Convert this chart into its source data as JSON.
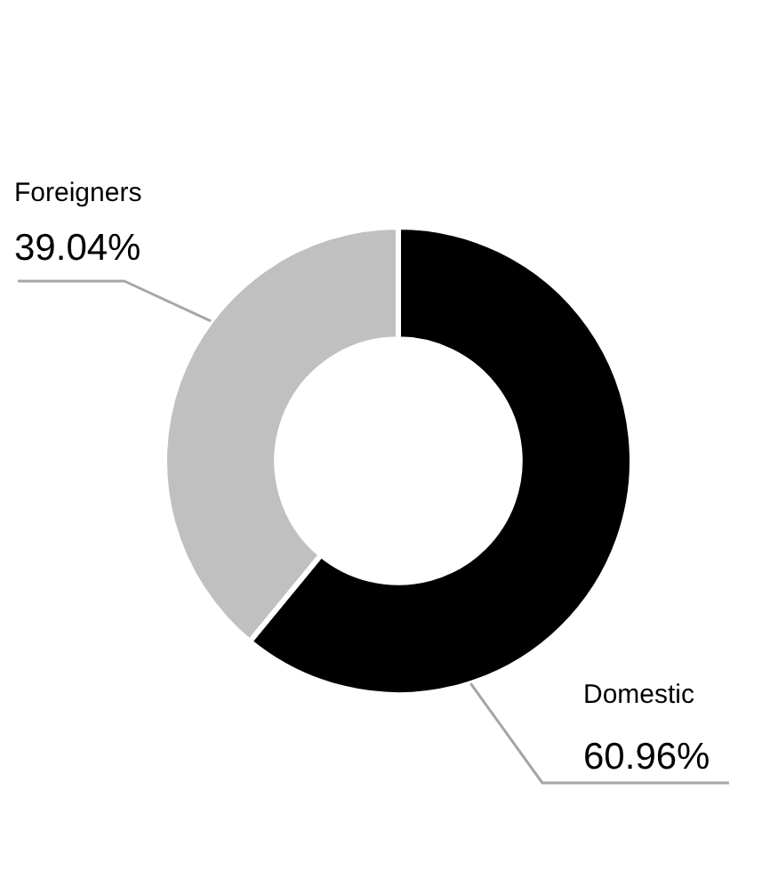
{
  "chart_data": {
    "type": "donut",
    "categories": [
      "Domestic",
      "Foreigners"
    ],
    "values": [
      60.96,
      39.04
    ],
    "colors": [
      "#000000",
      "#c0c0c0"
    ],
    "value_labels": [
      "60.96%",
      "39.04%"
    ],
    "legend": false
  }
}
